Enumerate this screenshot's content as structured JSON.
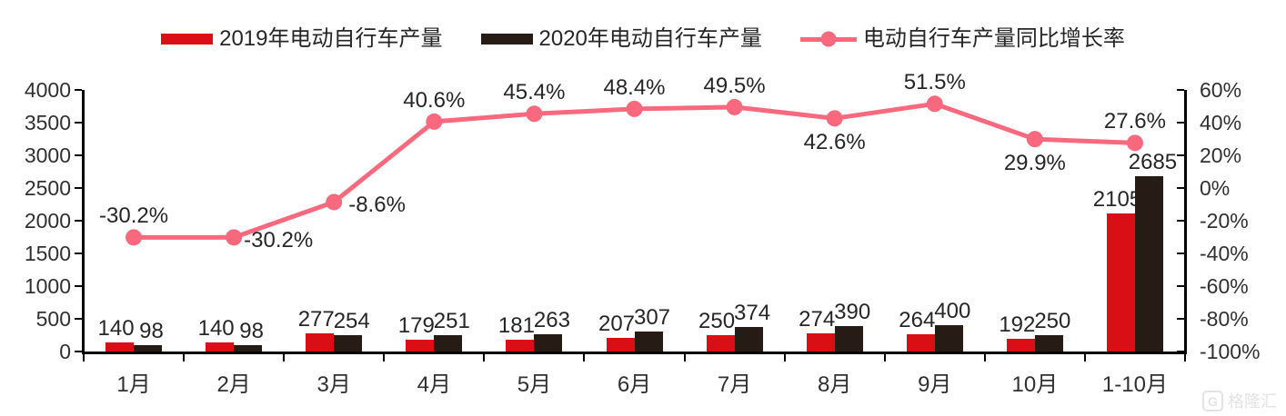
{
  "legend": {
    "items": [
      {
        "label": "2019年电动自行车产量",
        "swatch": "bar",
        "color": "#d90f15"
      },
      {
        "label": "2020年电动自行车产量",
        "swatch": "bar",
        "color": "#271b16"
      },
      {
        "label": "电动自行车产量同比增长率",
        "swatch": "line",
        "color": "#f9697e"
      }
    ]
  },
  "watermark": {
    "logo": "G",
    "brand": "格隆汇"
  },
  "chart_data": {
    "type": "bar+line",
    "title": "",
    "categories": [
      "1月",
      "2月",
      "3月",
      "4月",
      "5月",
      "6月",
      "7月",
      "8月",
      "9月",
      "10月",
      "1-10月"
    ],
    "series": [
      {
        "name": "2019年电动自行车产量",
        "type": "bar",
        "axis": "left",
        "color": "#d90f15",
        "values": [
          140,
          140,
          277,
          179,
          181,
          207,
          250,
          274,
          264,
          192,
          2105
        ],
        "data_labels": [
          "140",
          "140",
          "277",
          "179",
          "181",
          "207",
          "250",
          "274",
          "264",
          "192",
          "2105"
        ]
      },
      {
        "name": "2020年电动自行车产量",
        "type": "bar",
        "axis": "left",
        "color": "#271b16",
        "values": [
          98,
          98,
          254,
          251,
          263,
          307,
          374,
          390,
          400,
          250,
          2685
        ],
        "data_labels": [
          "98",
          "98",
          "254",
          "251",
          "263",
          "307",
          "374",
          "390",
          "400",
          "250",
          "2685"
        ]
      },
      {
        "name": "电动自行车产量同比增长率",
        "type": "line",
        "axis": "right",
        "color": "#f9697e",
        "values": [
          -30.2,
          -30.2,
          -8.6,
          40.6,
          45.4,
          48.4,
          49.5,
          42.6,
          51.5,
          29.9,
          27.6
        ],
        "data_labels": [
          "-30.2%",
          "-30.2%",
          "-8.6%",
          "40.6%",
          "45.4%",
          "48.4%",
          "49.5%",
          "42.6%",
          "51.5%",
          "29.9%",
          "27.6%"
        ],
        "label_positions": [
          "above",
          "right",
          "right",
          "above",
          "above",
          "above",
          "above",
          "below",
          "above",
          "below",
          "above"
        ]
      }
    ],
    "left_axis": {
      "min": 0,
      "max": 4000,
      "step": 500,
      "tick_labels": [
        "4000",
        "3500",
        "3000",
        "2500",
        "2000",
        "1500",
        "1000",
        "500",
        "0"
      ]
    },
    "right_axis": {
      "min": -100,
      "max": 60,
      "step": 20,
      "tick_labels": [
        "60%",
        "40%",
        "20%",
        "0%",
        "-20%",
        "-40%",
        "-60%",
        "-80%",
        "-100%"
      ]
    },
    "grid": false,
    "legend_position": "top"
  }
}
